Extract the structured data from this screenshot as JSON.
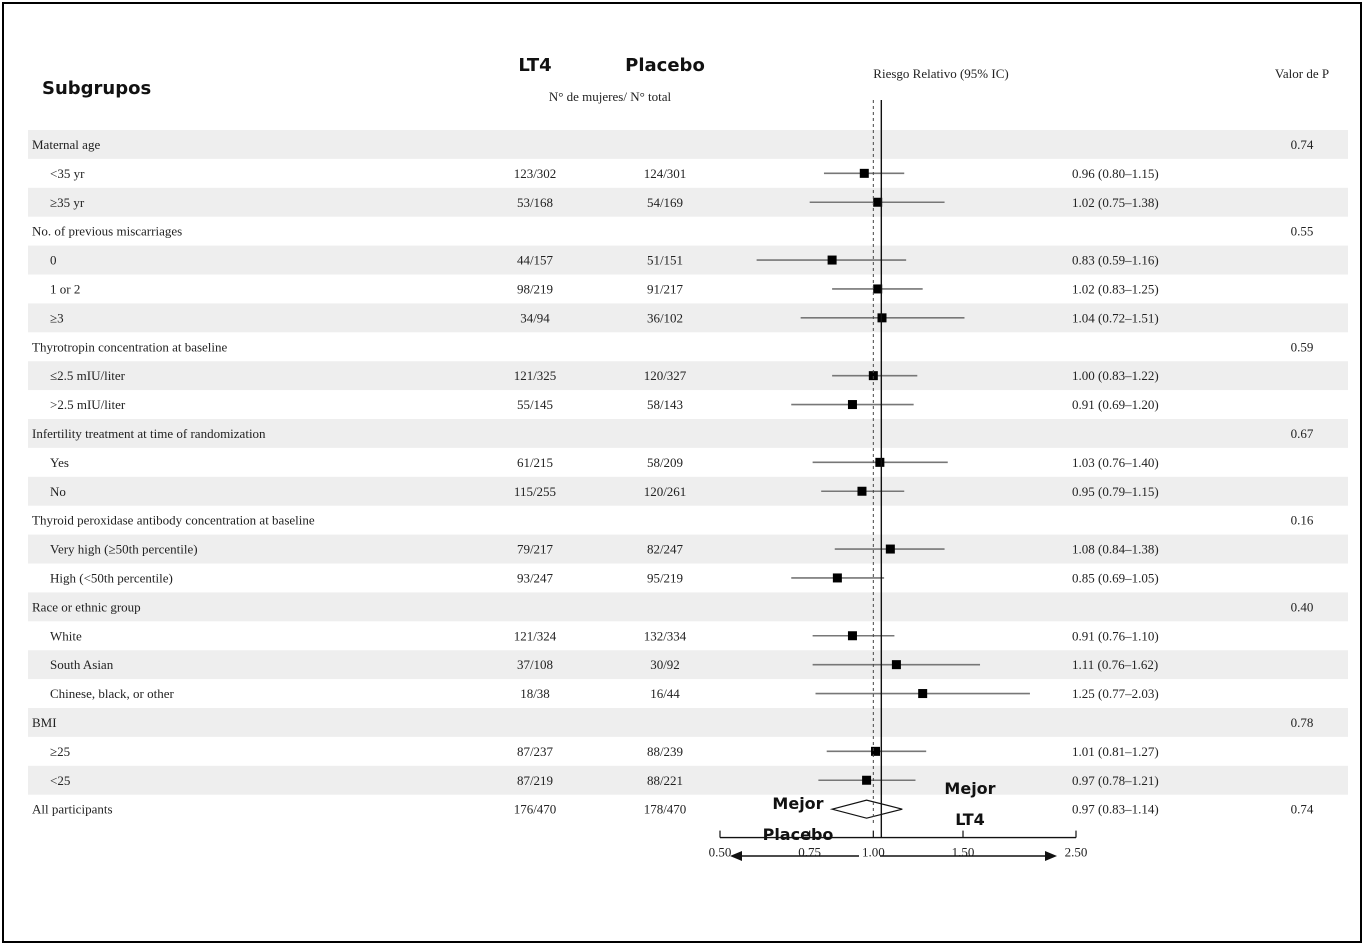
{
  "header": {
    "subgroups_label": "Subgrupos",
    "lt4_label": "LT4",
    "placebo_label": "Placebo",
    "count_label": "N° de mujeres/ N° total",
    "rr_label": "Riesgo Relativo (95% IC)",
    "p_label": "Valor de P"
  },
  "footer": {
    "left_line1": "Mejor",
    "left_line2": "Placebo",
    "right_line1": "Mejor",
    "right_line2": "LT4"
  },
  "colors": {
    "band": "#eeeeee",
    "ci_line": "#777777",
    "point": "#000000",
    "text": "#222222"
  },
  "chart_data": {
    "type": "forest",
    "x_scale": "log",
    "xlim": [
      0.5,
      2.5
    ],
    "x_ticks": [
      "0.50",
      "0.75",
      "1.00",
      "1.50",
      "2.50"
    ],
    "reference_line": 1.0,
    "rows": [
      {
        "kind": "group",
        "label": "Maternal age",
        "p": "0.74"
      },
      {
        "kind": "sub",
        "label": "<35 yr",
        "lt4": "123/302",
        "placebo": "124/301",
        "rr": 0.96,
        "lo": 0.8,
        "hi": 1.15,
        "text": "0.96 (0.80–1.15)"
      },
      {
        "kind": "sub",
        "label": "≥35 yr",
        "lt4": "53/168",
        "placebo": "54/169",
        "rr": 1.02,
        "lo": 0.75,
        "hi": 1.38,
        "text": "1.02 (0.75–1.38)"
      },
      {
        "kind": "group",
        "label": "No. of previous miscarriages",
        "p": "0.55"
      },
      {
        "kind": "sub",
        "label": "0",
        "lt4": "44/157",
        "placebo": "51/151",
        "rr": 0.83,
        "lo": 0.59,
        "hi": 1.16,
        "text": "0.83 (0.59–1.16)"
      },
      {
        "kind": "sub",
        "label": "1 or 2",
        "lt4": "98/219",
        "placebo": "91/217",
        "rr": 1.02,
        "lo": 0.83,
        "hi": 1.25,
        "text": "1.02 (0.83–1.25)"
      },
      {
        "kind": "sub",
        "label": "≥3",
        "lt4": "34/94",
        "placebo": "36/102",
        "rr": 1.04,
        "lo": 0.72,
        "hi": 1.51,
        "text": "1.04 (0.72–1.51)"
      },
      {
        "kind": "group",
        "label": "Thyrotropin concentration at baseline",
        "p": "0.59"
      },
      {
        "kind": "sub",
        "label": "≤2.5 mIU/liter",
        "lt4": "121/325",
        "placebo": "120/327",
        "rr": 1.0,
        "lo": 0.83,
        "hi": 1.22,
        "text": "1.00 (0.83–1.22)"
      },
      {
        "kind": "sub",
        "label": ">2.5 mIU/liter",
        "lt4": "55/145",
        "placebo": "58/143",
        "rr": 0.91,
        "lo": 0.69,
        "hi": 1.2,
        "text": "0.91 (0.69–1.20)"
      },
      {
        "kind": "group",
        "label": "Infertility treatment at time of randomization",
        "p": "0.67"
      },
      {
        "kind": "sub",
        "label": "Yes",
        "lt4": "61/215",
        "placebo": "58/209",
        "rr": 1.03,
        "lo": 0.76,
        "hi": 1.4,
        "text": "1.03 (0.76–1.40)"
      },
      {
        "kind": "sub",
        "label": "No",
        "lt4": "115/255",
        "placebo": "120/261",
        "rr": 0.95,
        "lo": 0.79,
        "hi": 1.15,
        "text": "0.95 (0.79–1.15)"
      },
      {
        "kind": "group",
        "label": "Thyroid peroxidase antibody concentration at baseline",
        "p": "0.16"
      },
      {
        "kind": "sub",
        "label": "Very high (≥50th percentile)",
        "lt4": "79/217",
        "placebo": "82/247",
        "rr": 1.08,
        "lo": 0.84,
        "hi": 1.38,
        "text": "1.08 (0.84–1.38)"
      },
      {
        "kind": "sub",
        "label": "High (<50th percentile)",
        "lt4": "93/247",
        "placebo": "95/219",
        "rr": 0.85,
        "lo": 0.69,
        "hi": 1.05,
        "text": "0.85 (0.69–1.05)"
      },
      {
        "kind": "group",
        "label": "Race or ethnic group",
        "p": "0.40"
      },
      {
        "kind": "sub",
        "label": "White",
        "lt4": "121/324",
        "placebo": "132/334",
        "rr": 0.91,
        "lo": 0.76,
        "hi": 1.1,
        "text": "0.91 (0.76–1.10)"
      },
      {
        "kind": "sub",
        "label": "South Asian",
        "lt4": "37/108",
        "placebo": "30/92",
        "rr": 1.11,
        "lo": 0.76,
        "hi": 1.62,
        "text": "1.11 (0.76–1.62)"
      },
      {
        "kind": "sub",
        "label": "Chinese, black, or other",
        "lt4": "18/38",
        "placebo": "16/44",
        "rr": 1.25,
        "lo": 0.77,
        "hi": 2.03,
        "text": "1.25 (0.77–2.03)"
      },
      {
        "kind": "group",
        "label": "BMI",
        "p": "0.78"
      },
      {
        "kind": "sub",
        "label": "≥25",
        "lt4": "87/237",
        "placebo": "88/239",
        "rr": 1.01,
        "lo": 0.81,
        "hi": 1.27,
        "text": "1.01 (0.81–1.27)"
      },
      {
        "kind": "sub",
        "label": "<25",
        "lt4": "87/219",
        "placebo": "88/221",
        "rr": 0.97,
        "lo": 0.78,
        "hi": 1.21,
        "text": "0.97 (0.78–1.21)"
      },
      {
        "kind": "overall",
        "label": "All participants",
        "lt4": "176/470",
        "placebo": "178/470",
        "rr": 0.97,
        "lo": 0.83,
        "hi": 1.14,
        "text": "0.97 (0.83–1.14)",
        "p": "0.74"
      }
    ]
  }
}
